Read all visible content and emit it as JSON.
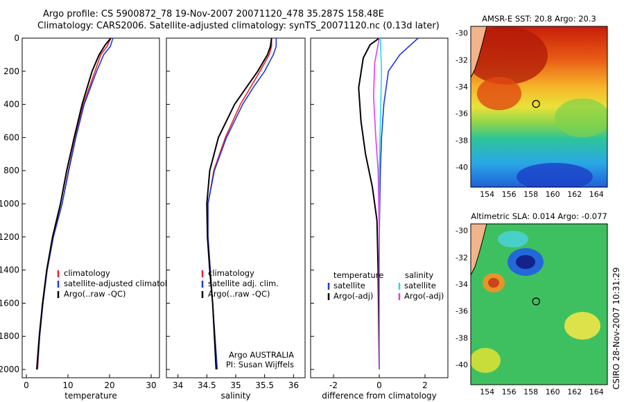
{
  "header": {
    "line1": "Argo profile: CS 5900872_78 19-Nov-2007 20071120_478 35.287S 158.48E",
    "line2": "Climatology: CARS2006. Satellite-adjusted climatology: synTS_20071120.nc (0.13d later)"
  },
  "colors": {
    "climatology": "#e8202a",
    "satellite": "#1a3ad8",
    "argo": "#000000",
    "satellite_diff": "#1fdde6",
    "argo_adj": "#e23ce8"
  },
  "chart_data": [
    {
      "type": "line",
      "panel": "temperature",
      "xlabel": "temperature",
      "xlim": [
        -1,
        32
      ],
      "ylim": [
        2050,
        0
      ],
      "xticks": [
        0,
        10,
        20,
        30
      ],
      "yticks": [
        0,
        200,
        400,
        600,
        800,
        1000,
        1200,
        1400,
        1600,
        1800,
        2000
      ],
      "legend": [
        "climatology",
        "satellite-adjusted climatology",
        "Argo(..raw -QC)"
      ],
      "series": [
        {
          "name": "climatology",
          "color": "climatology",
          "points": [
            [
              20.3,
              0
            ],
            [
              19.4,
              50
            ],
            [
              17.9,
              100
            ],
            [
              16.5,
              200
            ],
            [
              15.1,
              300
            ],
            [
              13.7,
              400
            ],
            [
              11.8,
              600
            ],
            [
              10.1,
              800
            ],
            [
              8.6,
              1000
            ],
            [
              6.5,
              1200
            ],
            [
              5.0,
              1400
            ],
            [
              4.0,
              1600
            ],
            [
              3.2,
              1800
            ],
            [
              2.7,
              2000
            ]
          ]
        },
        {
          "name": "satellite-adjusted climatology",
          "color": "satellite",
          "points": [
            [
              20.8,
              0
            ],
            [
              20.2,
              50
            ],
            [
              18.6,
              100
            ],
            [
              16.9,
              200
            ],
            [
              15.4,
              300
            ],
            [
              13.9,
              400
            ],
            [
              11.9,
              600
            ],
            [
              10.2,
              800
            ],
            [
              8.6,
              1000
            ],
            [
              6.5,
              1200
            ],
            [
              5.0,
              1400
            ],
            [
              4.0,
              1600
            ],
            [
              3.2,
              1800
            ],
            [
              2.6,
              2000
            ]
          ]
        },
        {
          "name": "Argo(..raw -QC)",
          "color": "argo",
          "points": [
            [
              20.3,
              0
            ],
            [
              19.0,
              40
            ],
            [
              17.5,
              100
            ],
            [
              15.8,
              200
            ],
            [
              14.6,
              300
            ],
            [
              13.4,
              400
            ],
            [
              11.5,
              600
            ],
            [
              9.7,
              800
            ],
            [
              8.2,
              1000
            ],
            [
              6.3,
              1200
            ],
            [
              4.9,
              1400
            ],
            [
              3.9,
              1600
            ],
            [
              3.1,
              1800
            ],
            [
              2.5,
              2000
            ]
          ]
        }
      ]
    },
    {
      "type": "line",
      "panel": "salinity",
      "xlabel": "salinity",
      "xlim": [
        33.8,
        36.2
      ],
      "ylim": [
        2050,
        0
      ],
      "xticks": [
        34,
        34.5,
        35,
        35.5,
        36
      ],
      "annotation": [
        "Argo AUSTRALIA",
        "PI: Susan Wijffels"
      ],
      "legend": [
        "climatology",
        "satellite adj. clim.",
        "Argo(..raw -QC)"
      ],
      "series": [
        {
          "name": "climatology",
          "color": "climatology",
          "points": [
            [
              35.62,
              0
            ],
            [
              35.62,
              50
            ],
            [
              35.58,
              100
            ],
            [
              35.42,
              200
            ],
            [
              35.25,
              300
            ],
            [
              35.08,
              400
            ],
            [
              34.82,
              600
            ],
            [
              34.62,
              800
            ],
            [
              34.52,
              1000
            ],
            [
              34.52,
              1200
            ],
            [
              34.56,
              1400
            ],
            [
              34.6,
              1600
            ],
            [
              34.64,
              1800
            ],
            [
              34.68,
              2000
            ]
          ]
        },
        {
          "name": "satellite adj. clim.",
          "color": "satellite",
          "points": [
            [
              35.7,
              0
            ],
            [
              35.7,
              50
            ],
            [
              35.65,
              100
            ],
            [
              35.5,
              200
            ],
            [
              35.3,
              300
            ],
            [
              35.12,
              400
            ],
            [
              34.84,
              600
            ],
            [
              34.63,
              800
            ],
            [
              34.52,
              1000
            ],
            [
              34.52,
              1200
            ],
            [
              34.56,
              1400
            ],
            [
              34.6,
              1600
            ],
            [
              34.64,
              1800
            ],
            [
              34.68,
              2000
            ]
          ]
        },
        {
          "name": "Argo(..raw -QC)",
          "color": "argo",
          "points": [
            [
              35.62,
              0
            ],
            [
              35.6,
              50
            ],
            [
              35.55,
              100
            ],
            [
              35.38,
              200
            ],
            [
              35.18,
              300
            ],
            [
              34.98,
              400
            ],
            [
              34.7,
              600
            ],
            [
              34.55,
              800
            ],
            [
              34.5,
              1000
            ],
            [
              34.51,
              1200
            ],
            [
              34.55,
              1400
            ],
            [
              34.6,
              1600
            ],
            [
              34.63,
              1800
            ],
            [
              34.66,
              2000
            ]
          ]
        }
      ]
    },
    {
      "type": "line",
      "panel": "difference",
      "xlabel": "difference from climatology",
      "xlim": [
        -3,
        3
      ],
      "ylim": [
        2050,
        0
      ],
      "xticks": [
        -2,
        0,
        2
      ],
      "legend_temperature": {
        "heading": "temperature",
        "items": [
          "satellite",
          "Argo(-adj)"
        ]
      },
      "legend_salinity": {
        "heading": "salinity",
        "items": [
          "satellite",
          "Argo(-adj)"
        ]
      },
      "series": [
        {
          "name": "temperature satellite",
          "color": "satellite",
          "points": [
            [
              1.7,
              0
            ],
            [
              0.9,
              100
            ],
            [
              0.4,
              200
            ],
            [
              0.2,
              400
            ],
            [
              0.1,
              600
            ],
            [
              0.05,
              800
            ],
            [
              0,
              1200
            ],
            [
              0,
              2000
            ]
          ]
        },
        {
          "name": "temperature Argo(-adj)",
          "color": "argo",
          "points": [
            [
              0,
              0
            ],
            [
              -0.4,
              40
            ],
            [
              -0.7,
              120
            ],
            [
              -0.9,
              300
            ],
            [
              -0.8,
              500
            ],
            [
              -0.6,
              700
            ],
            [
              -0.3,
              900
            ],
            [
              -0.1,
              1100
            ],
            [
              -0.05,
              1400
            ],
            [
              0,
              2000
            ]
          ]
        },
        {
          "name": "salinity satellite",
          "color": "satellite_diff",
          "points": [
            [
              0.05,
              0
            ],
            [
              0.1,
              200
            ],
            [
              0.05,
              500
            ],
            [
              0,
              800
            ],
            [
              0,
              2000
            ]
          ]
        },
        {
          "name": "salinity Argo(-adj)",
          "color": "argo_adj",
          "points": [
            [
              0,
              0
            ],
            [
              -0.2,
              150
            ],
            [
              -0.25,
              350
            ],
            [
              -0.15,
              600
            ],
            [
              -0.05,
              800
            ],
            [
              0,
              1200
            ],
            [
              0,
              2000
            ]
          ]
        }
      ]
    },
    {
      "type": "heatmap",
      "panel": "sst-map",
      "title": "AMSR-E SST: 20.8 Argo: 20.3",
      "xlim": [
        152.5,
        165
      ],
      "ylim": [
        -41.5,
        -29.5
      ],
      "xticks": [
        154,
        156,
        158,
        160,
        162,
        164
      ],
      "yticks": [
        -30,
        -32,
        -34,
        -36,
        -38,
        -40
      ],
      "marker": [
        158.48,
        -35.287
      ]
    },
    {
      "type": "heatmap",
      "panel": "sla-map",
      "title": "Altimetric SLA: 0.014 Argo: -0.077",
      "xlim": [
        152.5,
        165
      ],
      "ylim": [
        -41.5,
        -29.5
      ],
      "xticks": [
        154,
        156,
        158,
        160,
        162,
        164
      ],
      "yticks": [
        -30,
        -32,
        -34,
        -36,
        -38,
        -40
      ],
      "marker": [
        158.48,
        -35.287
      ]
    }
  ],
  "footer": {
    "credit": "CSIRO 28-Nov-2007 10:31:29"
  }
}
